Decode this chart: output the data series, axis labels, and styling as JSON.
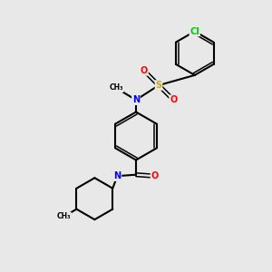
{
  "bg_color": "#e8e8e8",
  "bond_color": "#000000",
  "atom_colors": {
    "N": "#0000ff",
    "O": "#ff0000",
    "S": "#ccaa00",
    "Cl": "#00cc00",
    "C": "#000000"
  },
  "bond_width": 1.5
}
